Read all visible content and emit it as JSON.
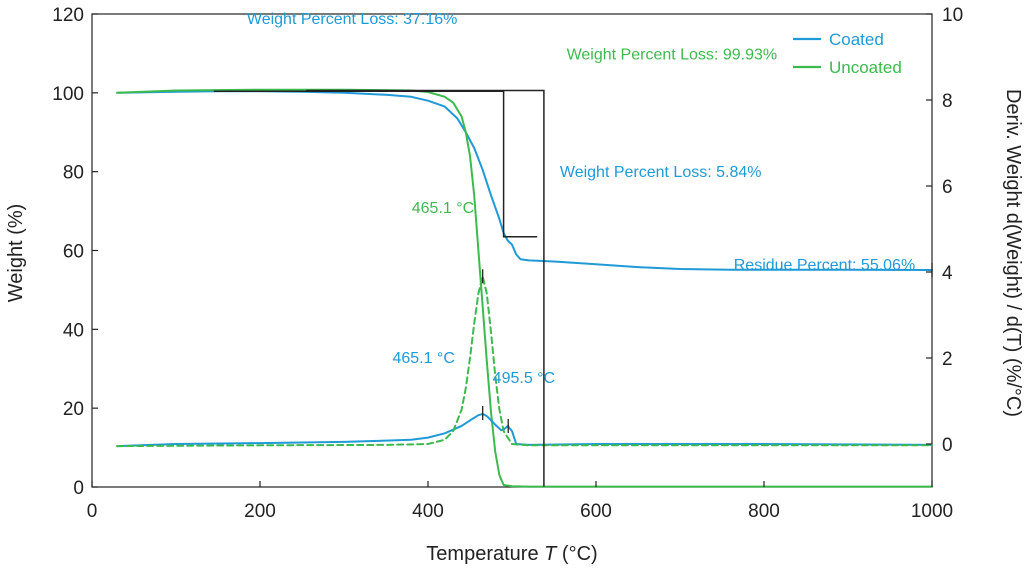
{
  "chart_data": {
    "type": "line",
    "xlabel": "Temperature T (°C)",
    "xlabel_parts": [
      "Temperature ",
      "T",
      " (°C)"
    ],
    "ylabel": "Weight (%)",
    "y2label": "Deriv. Weight d(Weight) / d(T) (%/°C)",
    "xlim": [
      0,
      1000
    ],
    "ylim": [
      0,
      120
    ],
    "y2lim": [
      -1,
      10
    ],
    "x_ticks": [
      "0",
      "200",
      "400",
      "600",
      "800",
      "1000"
    ],
    "y_ticks": [
      "0",
      "20",
      "40",
      "60",
      "80",
      "100",
      "120"
    ],
    "y2_ticks": [
      "0",
      "2",
      "4",
      "6",
      "8",
      "10"
    ],
    "grid": false,
    "legend_position": "top-right",
    "colors": {
      "coated": "#1f9ad6",
      "uncoated": "#3dba4e",
      "markers": "#222222"
    },
    "series": [
      {
        "name": "Coated",
        "axis": "left",
        "style": "solid",
        "x": [
          30,
          100,
          150,
          200,
          250,
          300,
          350,
          380,
          400,
          420,
          435,
          445,
          455,
          465,
          475,
          485,
          490,
          495,
          500,
          505,
          510,
          520,
          550,
          600,
          650,
          700,
          760,
          800,
          900,
          1000
        ],
        "y": [
          100.0,
          100.3,
          100.4,
          100.4,
          100.3,
          100.0,
          99.5,
          99.0,
          98.0,
          96.5,
          93.5,
          90.0,
          86.0,
          80.5,
          74.0,
          68.0,
          64.5,
          62.5,
          61.5,
          59.0,
          57.8,
          57.5,
          57.2,
          56.5,
          55.8,
          55.3,
          55.1,
          55.1,
          55.1,
          55.06
        ]
      },
      {
        "name": "Uncoated",
        "axis": "left",
        "style": "solid",
        "x": [
          30,
          100,
          200,
          300,
          380,
          400,
          420,
          430,
          440,
          445,
          450,
          455,
          460,
          465,
          470,
          475,
          480,
          485,
          490,
          500,
          520,
          600,
          800,
          1000
        ],
        "y": [
          100.0,
          100.6,
          100.8,
          100.8,
          100.6,
          100.2,
          99.0,
          97.5,
          94.0,
          90.0,
          84.0,
          74.0,
          60.0,
          46.0,
          32.0,
          19.0,
          9.0,
          3.0,
          0.5,
          0.2,
          0.1,
          0.1,
          0.1,
          0.1
        ]
      },
      {
        "name": "Coated deriv.",
        "axis": "right",
        "style": "solid",
        "x": [
          30,
          100,
          200,
          300,
          350,
          380,
          400,
          420,
          440,
          450,
          460,
          465,
          470,
          480,
          487,
          490,
          495,
          500,
          505,
          520,
          600,
          800,
          1000
        ],
        "y": [
          -0.05,
          0.0,
          0.02,
          0.05,
          0.08,
          0.1,
          0.15,
          0.25,
          0.42,
          0.55,
          0.67,
          0.7,
          0.65,
          0.45,
          0.32,
          0.33,
          0.42,
          0.3,
          0.0,
          -0.02,
          0.0,
          0.0,
          -0.02
        ]
      },
      {
        "name": "Uncoated deriv.",
        "axis": "right",
        "style": "dashed",
        "x": [
          30,
          200,
          350,
          400,
          420,
          430,
          440,
          445,
          450,
          455,
          460,
          465,
          470,
          475,
          480,
          485,
          490,
          500,
          520,
          600,
          1000
        ],
        "y": [
          -0.05,
          -0.03,
          -0.02,
          0.0,
          0.1,
          0.3,
          0.8,
          1.3,
          2.0,
          2.8,
          3.5,
          3.9,
          3.5,
          2.6,
          1.6,
          0.8,
          0.3,
          0.0,
          -0.03,
          -0.03,
          -0.03
        ]
      }
    ],
    "markers": [
      {
        "type": "step",
        "axis": "left",
        "x": [
          145,
          490,
          490,
          530
        ],
        "y": [
          100.4,
          100.4,
          63.5,
          63.5
        ]
      },
      {
        "type": "step",
        "axis": "left",
        "x": [
          255,
          538,
          538
        ],
        "y": [
          100.6,
          100.6,
          0.1
        ]
      },
      {
        "type": "tick",
        "axis": "right",
        "x": 465.1,
        "y": 0.72
      },
      {
        "type": "tick",
        "axis": "right",
        "x": 495.5,
        "y": 0.42
      },
      {
        "type": "tick",
        "axis": "right",
        "x": 465.1,
        "y": 3.9
      },
      {
        "type": "tick",
        "axis": "left",
        "x": 1000,
        "y": 55.06
      }
    ],
    "annotations": [
      {
        "text": "Weight Percent Loss: 37.16%",
        "color": "coated",
        "x": 435,
        "y": 117.4,
        "anchor": "end"
      },
      {
        "text": "Weight Percent Loss: 99.93%",
        "color": "uncoated",
        "x": 565,
        "y": 108.4,
        "anchor": "start"
      },
      {
        "text": "Weight Percent Loss: 5.84%",
        "color": "coated",
        "x": 557,
        "y": 78.6,
        "anchor": "start"
      },
      {
        "text": "465.1 °C",
        "color": "uncoated",
        "x": 455,
        "y": 69.5,
        "anchor": "end"
      },
      {
        "text": "Residue Percent: 55.06%",
        "color": "coated",
        "x": 980,
        "y": 55.0,
        "anchor": "end"
      },
      {
        "text": "465.1 °C",
        "color": "coated",
        "x": 432,
        "y": 31.4,
        "anchor": "end"
      },
      {
        "text": "495.5 °C",
        "color": "coated",
        "x": 477,
        "y": 26.4,
        "anchor": "start"
      }
    ]
  }
}
